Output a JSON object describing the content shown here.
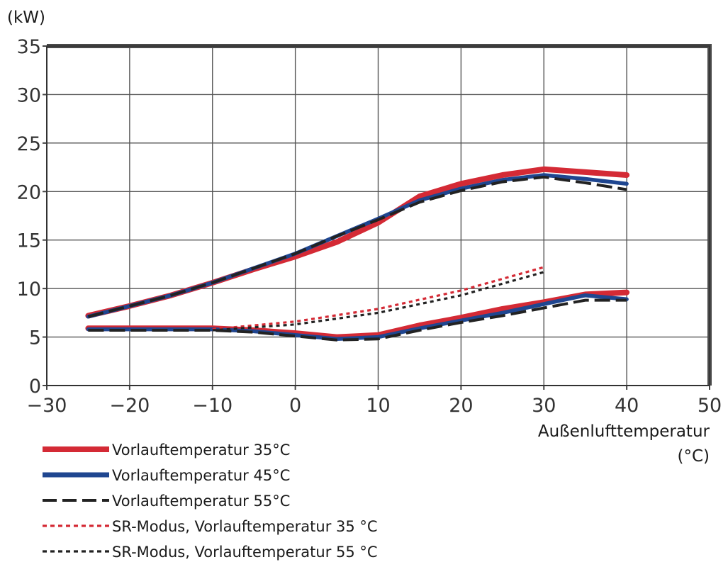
{
  "chart_data": {
    "type": "line",
    "title": "",
    "ylabel": "(kW)",
    "xlabel_line1": "Außenlufttemperatur",
    "xlabel_line2": "(°C)",
    "xlim": [
      -30,
      50
    ],
    "ylim": [
      0,
      35
    ],
    "xticks": [
      -30,
      -20,
      -10,
      0,
      10,
      20,
      30,
      40,
      50
    ],
    "yticks": [
      0,
      5,
      10,
      15,
      20,
      25,
      30,
      35
    ],
    "grid": true,
    "legend_position": "bottom-left",
    "series": [
      {
        "name": "Vorlauftemperatur 35°C",
        "color": "#d42a35",
        "style": "solid",
        "segments": [
          {
            "x": [
              -25,
              -20,
              -15,
              -10,
              -5,
              0,
              5,
              10,
              15,
              20,
              25,
              30,
              35,
              40
            ],
            "y": [
              7.2,
              8.2,
              9.3,
              10.6,
              12.0,
              13.3,
              14.8,
              16.8,
              19.5,
              20.8,
              21.7,
              22.3,
              22.0,
              21.7
            ]
          },
          {
            "x": [
              -25,
              -20,
              -15,
              -10,
              -5,
              0,
              5,
              10,
              15,
              20,
              25,
              30,
              35,
              40
            ],
            "y": [
              5.9,
              5.9,
              5.9,
              5.9,
              5.7,
              5.4,
              5.0,
              5.2,
              6.2,
              7.0,
              7.9,
              8.6,
              9.4,
              9.6
            ]
          }
        ]
      },
      {
        "name": "Vorlauftemperatur 45°C",
        "color": "#1f4690",
        "style": "solid",
        "segments": [
          {
            "x": [
              -25,
              -20,
              -15,
              -10,
              -5,
              0,
              5,
              10,
              15,
              20,
              25,
              30,
              35,
              40
            ],
            "y": [
              7.1,
              8.2,
              9.3,
              10.6,
              12.1,
              13.6,
              15.4,
              17.2,
              19.1,
              20.3,
              21.2,
              21.7,
              21.3,
              20.8
            ]
          },
          {
            "x": [
              -25,
              -20,
              -15,
              -10,
              -5,
              0,
              5,
              10,
              15,
              20,
              25,
              30,
              35,
              40
            ],
            "y": [
              5.8,
              5.8,
              5.8,
              5.8,
              5.6,
              5.2,
              4.8,
              5.0,
              5.9,
              6.7,
              7.5,
              8.4,
              9.3,
              8.9
            ]
          }
        ]
      },
      {
        "name": "Vorlauftemperatur 55°C",
        "color": "#222222",
        "style": "dashed",
        "segments": [
          {
            "x": [
              -25,
              -20,
              -15,
              -10,
              -5,
              0,
              5,
              10,
              15,
              20,
              25,
              30,
              35,
              40
            ],
            "y": [
              7.1,
              8.2,
              9.3,
              10.6,
              12.1,
              13.6,
              15.4,
              17.1,
              18.9,
              20.1,
              21.0,
              21.5,
              20.9,
              20.2
            ]
          },
          {
            "x": [
              -25,
              -20,
              -15,
              -10,
              -5,
              0,
              5,
              10,
              15,
              20,
              25,
              30,
              35,
              40
            ],
            "y": [
              5.7,
              5.7,
              5.7,
              5.7,
              5.5,
              5.1,
              4.7,
              4.8,
              5.7,
              6.5,
              7.2,
              8.0,
              8.8,
              8.8
            ]
          }
        ]
      },
      {
        "name": "SR-Modus, Vorlauftemperatur 35 °C",
        "color": "#d42a35",
        "style": "dotted",
        "segments": [
          {
            "x": [
              -10,
              0,
              10,
              20,
              30
            ],
            "y": [
              5.8,
              6.6,
              7.9,
              9.8,
              12.2
            ]
          }
        ]
      },
      {
        "name": "SR-Modus, Vorlauftemperatur 55 °C",
        "color": "#222222",
        "style": "dotted",
        "segments": [
          {
            "x": [
              -10,
              0,
              10,
              20,
              30
            ],
            "y": [
              5.7,
              6.3,
              7.5,
              9.3,
              11.7
            ]
          }
        ]
      }
    ]
  }
}
